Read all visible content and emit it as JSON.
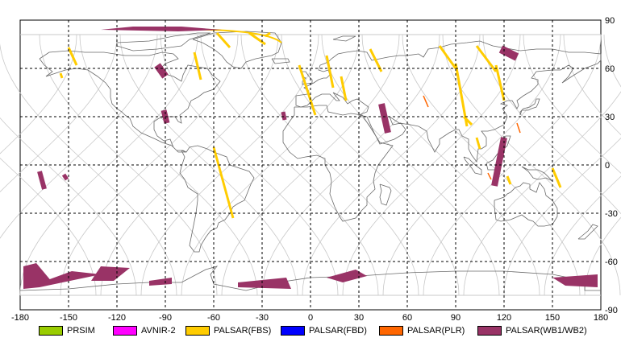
{
  "map": {
    "x_range": [
      -180,
      180
    ],
    "y_range": [
      -90,
      90
    ],
    "x_ticks": [
      "-180",
      "-150",
      "-120",
      "-90",
      "-60",
      "-30",
      "0",
      "30",
      "60",
      "90",
      "120",
      "150",
      "180"
    ],
    "y_ticks": [
      "90",
      "60",
      "30",
      "0",
      "-30",
      "-60",
      "-90"
    ],
    "colors": {
      "grid": "#000000",
      "orbit": "#c8c8c8",
      "coast": "#6a6a6a",
      "fbs": "#ffcc00",
      "plr": "#ff6600",
      "wb": "#993366"
    }
  },
  "legend": [
    {
      "label": "PRSIM",
      "color": "#99cc00"
    },
    {
      "label": "AVNIR-2",
      "color": "#ff00ff"
    },
    {
      "label": "PALSAR(FBS)",
      "color": "#ffcc00"
    },
    {
      "label": "PALSAR(FBD)",
      "color": "#0000ff"
    },
    {
      "label": "PALSAR(PLR)",
      "color": "#ff6600"
    },
    {
      "label": "PALSAR(WB1/WB2)",
      "color": "#993366"
    }
  ]
}
